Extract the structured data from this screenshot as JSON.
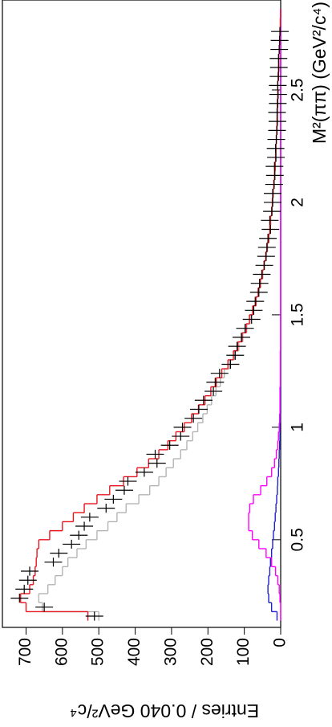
{
  "chart_data": {
    "type": "histogram",
    "xlabel": "M²(ππ) (GeV²/c⁴)",
    "ylabel": "Entries / 0.040 GeV²/c⁴",
    "xlim": [
      0.11,
      2.9
    ],
    "xticks": [
      0.5,
      1,
      1.5,
      2,
      2.5
    ],
    "ylim": [
      0,
      765
    ],
    "yticks": [
      0,
      100,
      200,
      300,
      400,
      500,
      600,
      700
    ],
    "bins": [
      0.14,
      0.18,
      0.22,
      0.26,
      0.3,
      0.34,
      0.38,
      0.42,
      0.46,
      0.5,
      0.54,
      0.58,
      0.62,
      0.66,
      0.7,
      0.74,
      0.78,
      0.82,
      0.86,
      0.9,
      0.94,
      0.98,
      1.02,
      1.06,
      1.1,
      1.14,
      1.18,
      1.22,
      1.26,
      1.3,
      1.34,
      1.38,
      1.42,
      1.46,
      1.5,
      1.54,
      1.58,
      1.62,
      1.66,
      1.7,
      1.74,
      1.78,
      1.82,
      1.86,
      1.9,
      1.94,
      1.98,
      2.02,
      2.06,
      2.1,
      2.14,
      2.18,
      2.22,
      2.26,
      2.3,
      2.34,
      2.38,
      2.42,
      2.46,
      2.5,
      2.54,
      2.58,
      2.62,
      2.66,
      2.7,
      2.74,
      2.78,
      2.82,
      2.86
    ],
    "series": [
      {
        "color": "#b4b4b4",
        "style": "step",
        "values": [
          500,
          655,
          665,
          640,
          620,
          600,
          585,
          560,
          535,
          505,
          475,
          450,
          425,
          390,
          360,
          335,
          315,
          295,
          275,
          258,
          242,
          228,
          214,
          202,
          190,
          178,
          166,
          155,
          140,
          127,
          115,
          104,
          93,
          84,
          75,
          67,
          61,
          55,
          49,
          45,
          40,
          36,
          32,
          29,
          27,
          24,
          22,
          20,
          18,
          16,
          15,
          14,
          13,
          12,
          11,
          10,
          9,
          9,
          8,
          8,
          7,
          6,
          5,
          4,
          3,
          2,
          1,
          0
        ]
      },
      {
        "color": "#2020c8",
        "style": "step",
        "values": [
          10,
          25,
          33,
          35,
          33,
          30,
          28,
          25,
          22,
          20,
          17,
          15,
          13,
          11,
          9,
          8,
          6,
          5,
          4,
          3,
          2,
          2,
          1,
          0,
          0,
          0,
          0,
          0,
          0,
          0,
          0,
          0,
          0,
          0,
          0,
          0,
          0,
          0,
          0,
          0,
          0,
          0,
          0,
          0,
          0,
          0,
          0,
          0,
          0,
          0,
          0,
          0,
          0,
          0,
          0,
          0,
          0,
          0,
          0,
          0,
          0,
          0,
          0,
          0,
          0,
          0,
          0,
          0
        ]
      },
      {
        "color": "#ff00ff",
        "style": "step",
        "values": [
          0,
          0,
          2,
          4,
          8,
          14,
          25,
          40,
          60,
          78,
          88,
          88,
          85,
          75,
          55,
          38,
          25,
          17,
          12,
          8,
          6,
          4,
          3,
          2,
          2,
          2,
          1,
          1,
          1,
          1,
          0,
          0,
          0,
          0,
          0,
          0,
          0,
          0,
          0,
          0,
          0,
          0,
          0,
          0,
          0,
          0,
          0,
          0,
          0,
          0,
          0,
          0,
          0,
          0,
          0,
          0,
          0,
          0,
          0,
          0,
          0,
          0,
          0,
          0,
          0,
          0,
          0,
          0
        ]
      },
      {
        "color": "#e8141e",
        "style": "step",
        "values": [
          530,
          700,
          715,
          690,
          680,
          675,
          672,
          670,
          665,
          635,
          600,
          570,
          540,
          505,
          470,
          432,
          395,
          363,
          335,
          310,
          288,
          265,
          245,
          226,
          208,
          192,
          177,
          162,
          145,
          130,
          118,
          106,
          95,
          86,
          77,
          68,
          62,
          56,
          50,
          46,
          41,
          37,
          33,
          30,
          28,
          25,
          23,
          21,
          19,
          17,
          15,
          14,
          13,
          12,
          11,
          10,
          9,
          9,
          8,
          8,
          7,
          6,
          5,
          4,
          3,
          2,
          1,
          0
        ]
      },
      {
        "color": "#000000",
        "style": "points",
        "values": [
          512,
          650,
          718,
          705,
          695,
          690,
          625,
          610,
          575,
          555,
          540,
          525,
          480,
          460,
          430,
          420,
          375,
          340,
          345,
          305,
          275,
          270,
          240,
          225,
          212,
          185,
          180,
          168,
          138,
          125,
          120,
          108,
          98,
          80,
          74,
          70,
          60,
          58,
          52,
          45,
          40,
          38,
          35,
          28,
          30,
          24,
          22,
          22,
          18,
          16,
          17,
          13,
          14,
          12,
          10,
          9,
          10,
          8,
          7,
          8,
          6,
          5,
          6,
          4,
          3,
          2,
          null,
          null
        ]
      }
    ]
  }
}
